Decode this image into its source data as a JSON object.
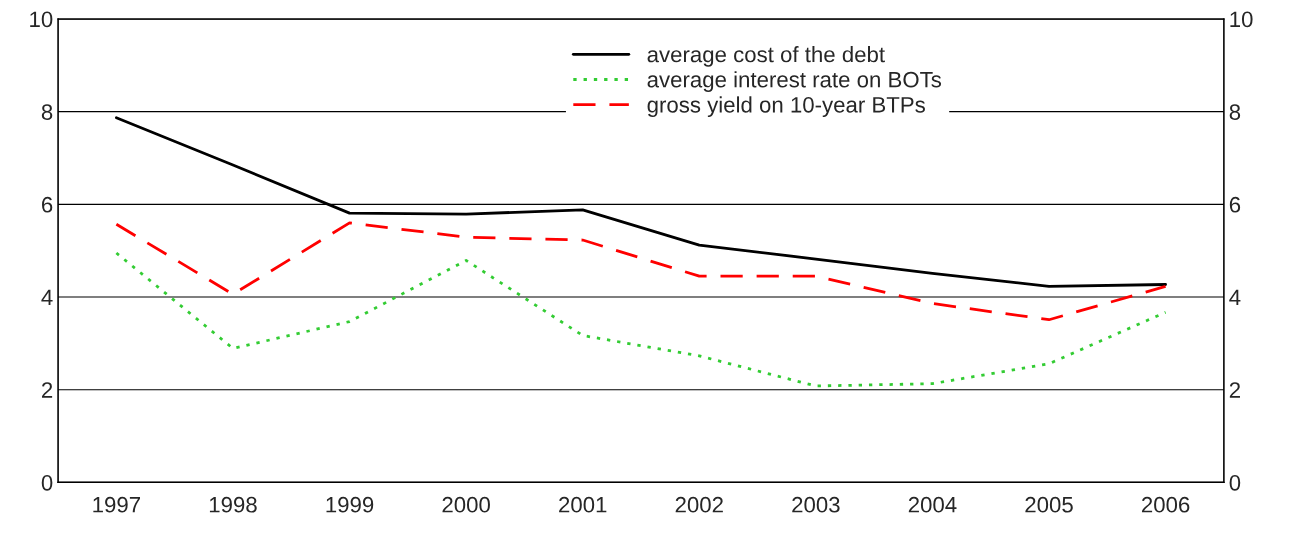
{
  "chart_data": {
    "type": "line",
    "categories": [
      "1997",
      "1998",
      "1999",
      "2000",
      "2001",
      "2002",
      "2003",
      "2004",
      "2005",
      "2006"
    ],
    "series": [
      {
        "name": "average cost of the debt",
        "color": "#000000",
        "line_style": "solid",
        "values": [
          7.87,
          6.85,
          5.81,
          5.79,
          5.88,
          5.12,
          4.82,
          4.51,
          4.23,
          4.27
        ]
      },
      {
        "name": "average interest rate on BOTs",
        "color": "#33cc33",
        "line_style": "dotted",
        "values": [
          4.95,
          2.89,
          3.47,
          4.79,
          3.17,
          2.73,
          2.08,
          2.13,
          2.56,
          3.67
        ]
      },
      {
        "name": "gross yield on 10-year BTPs",
        "color": "#ff0000",
        "line_style": "dashed",
        "values": [
          5.57,
          4.06,
          5.6,
          5.29,
          5.23,
          4.45,
          4.45,
          3.86,
          3.51,
          4.23
        ]
      }
    ],
    "ylim": [
      0,
      10
    ],
    "yticks": [
      0,
      2,
      4,
      6,
      8,
      10
    ],
    "y2lim": [
      0,
      10
    ],
    "y2ticks": [
      0,
      2,
      4,
      6,
      8,
      10
    ],
    "grid": "y",
    "legend": "top",
    "marker": "none"
  }
}
